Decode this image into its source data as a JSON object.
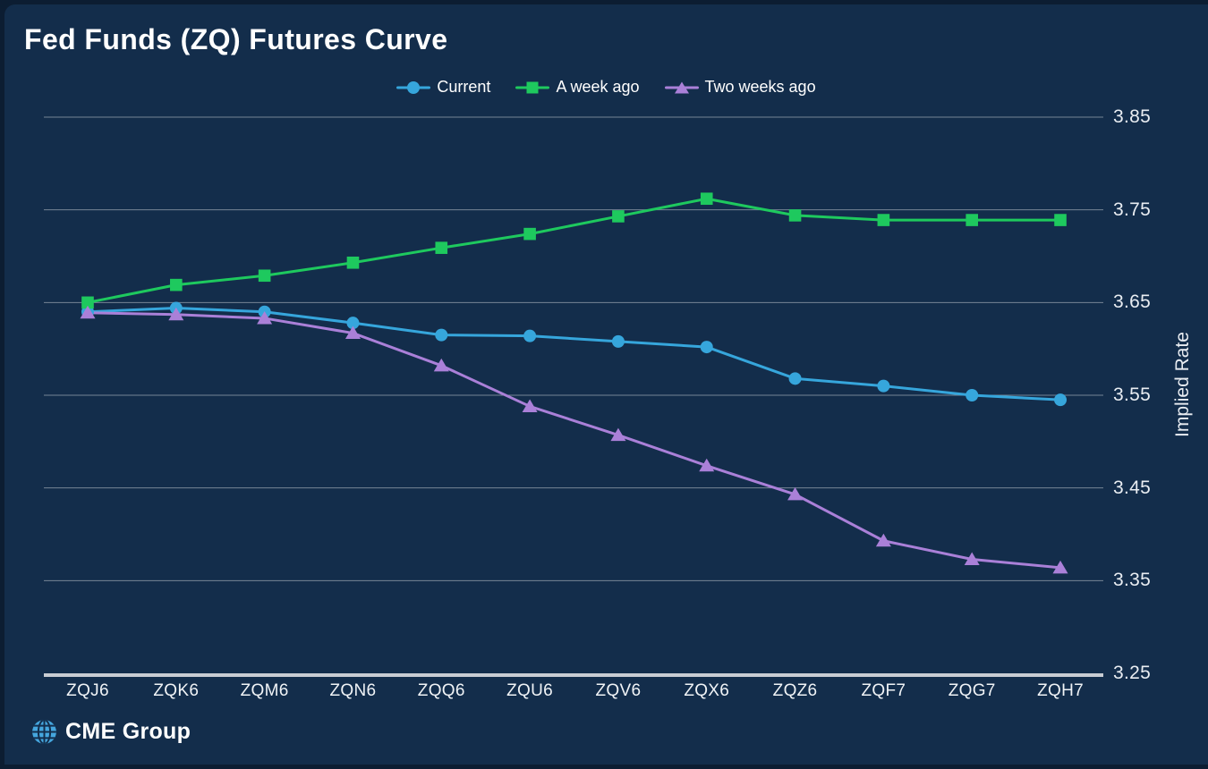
{
  "title": "Fed Funds (ZQ) Futures Curve",
  "branding": {
    "logo_text": "CME Group",
    "globe_icon_color": "#45a6de"
  },
  "colors": {
    "background": "#132d4b",
    "backdrop": "#0c1d32",
    "current_blue": "#36a6dc",
    "week_ago_green": "#1ec95e",
    "two_weeks_purple": "#aa80d8",
    "gridline": "rgba(255,255,255,0.42)",
    "axis_line": "#c8cdd3",
    "text": "#ffffff"
  },
  "chart_data": {
    "type": "line",
    "title": "Fed Funds (ZQ) Futures Curve",
    "categories": [
      "ZQJ6",
      "ZQK6",
      "ZQM6",
      "ZQN6",
      "ZQQ6",
      "ZQU6",
      "ZQV6",
      "ZQX6",
      "ZQZ6",
      "ZQF7",
      "ZQG7",
      "ZQH7"
    ],
    "series": [
      {
        "name": "Current",
        "marker": "circle",
        "color": "#36a6dc",
        "values": [
          3.64,
          3.644,
          3.64,
          3.628,
          3.615,
          3.614,
          3.608,
          3.602,
          3.568,
          3.56,
          3.55,
          3.545
        ]
      },
      {
        "name": "A week ago",
        "marker": "square",
        "color": "#1ec95e",
        "values": [
          3.65,
          3.669,
          3.679,
          3.693,
          3.709,
          3.724,
          3.743,
          3.762,
          3.744,
          3.739,
          3.739,
          3.739
        ]
      },
      {
        "name": "Two weeks ago",
        "marker": "triangle",
        "color": "#aa80d8",
        "values": [
          3.639,
          3.637,
          3.633,
          3.617,
          3.582,
          3.538,
          3.507,
          3.474,
          3.443,
          3.393,
          3.373,
          3.364
        ]
      }
    ],
    "xlabel": "",
    "ylabel": "Implied Rate",
    "yticks": [
      3.85,
      3.75,
      3.65,
      3.55,
      3.45,
      3.35,
      3.25
    ],
    "ylim": [
      3.25,
      3.85
    ],
    "grid": true,
    "legend_position": "top-center"
  }
}
